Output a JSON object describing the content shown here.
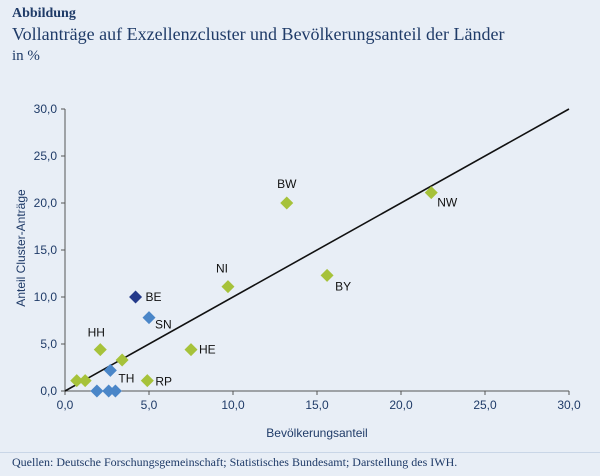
{
  "header": {
    "label": "Abbildung",
    "title": "Vollanträge auf Exzellenzcluster und Bevölkerungsanteil der Länder",
    "unit": "in %"
  },
  "footer": {
    "source": "Quellen: Deutsche Forschungsgemeinschaft; Statistisches Bundesamt; Darstellung des IWH."
  },
  "chart_data": {
    "type": "scatter",
    "title": "",
    "xlabel": "Bevölkerungsanteil",
    "ylabel": "Anteil Cluster-Anträge",
    "xlim": [
      0,
      30
    ],
    "ylim": [
      0,
      30
    ],
    "x_ticks": [
      "0,0",
      "5,0",
      "10,0",
      "15,0",
      "20,0",
      "25,0",
      "30,0"
    ],
    "y_ticks": [
      "0,0",
      "5,0",
      "10,0",
      "15,0",
      "20,0",
      "25,0",
      "30,0"
    ],
    "grid": false,
    "reference_line": {
      "from": [
        0,
        0
      ],
      "to": [
        30,
        30
      ]
    },
    "colors": {
      "green": "#a6c23a",
      "blue": "#4a86c8",
      "navy": "#243a8a"
    },
    "points": [
      {
        "label": "BW",
        "x": 13.2,
        "y": 20.0,
        "color": "green"
      },
      {
        "label": "NW",
        "x": 21.8,
        "y": 21.1,
        "color": "green"
      },
      {
        "label": "NI",
        "x": 9.7,
        "y": 11.1,
        "color": "green"
      },
      {
        "label": "BY",
        "x": 15.6,
        "y": 12.3,
        "color": "green"
      },
      {
        "label": "BE",
        "x": 4.2,
        "y": 10.0,
        "color": "navy"
      },
      {
        "label": "SN",
        "x": 5.0,
        "y": 7.8,
        "color": "blue"
      },
      {
        "label": "HH",
        "x": 2.1,
        "y": 4.4,
        "color": "green"
      },
      {
        "label": "HE",
        "x": 7.5,
        "y": 4.4,
        "color": "green"
      },
      {
        "label": "",
        "x": 3.4,
        "y": 3.3,
        "color": "green"
      },
      {
        "label": "TH",
        "x": 2.7,
        "y": 2.2,
        "color": "blue"
      },
      {
        "label": "RP",
        "x": 4.9,
        "y": 1.1,
        "color": "green"
      },
      {
        "label": "",
        "x": 0.7,
        "y": 1.1,
        "color": "green"
      },
      {
        "label": "",
        "x": 1.2,
        "y": 1.1,
        "color": "green"
      },
      {
        "label": "",
        "x": 1.9,
        "y": 0.0,
        "color": "blue"
      },
      {
        "label": "",
        "x": 2.6,
        "y": 0.0,
        "color": "blue"
      },
      {
        "label": "",
        "x": 3.0,
        "y": 0.0,
        "color": "blue"
      }
    ]
  }
}
